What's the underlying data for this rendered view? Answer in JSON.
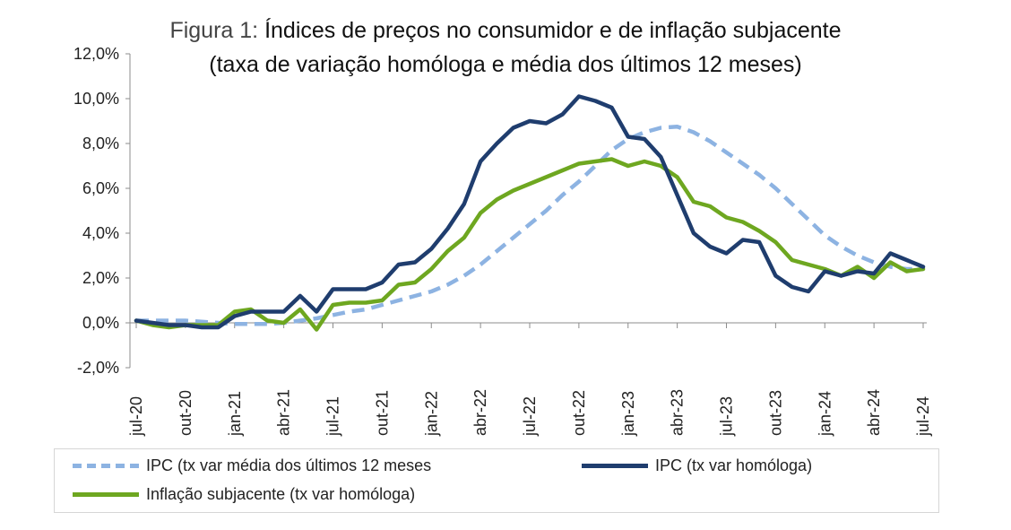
{
  "chart_data": {
    "type": "line",
    "title_prefix": "Figura 1:",
    "title": "Índices de preços no consumidor e de inflação subjacente",
    "subtitle": "(taxa de variação homóloga e média dos últimos 12 meses)",
    "ylim": [
      -2,
      12
    ],
    "y_ticks": [
      "-2,0%",
      "0,0%",
      "2,0%",
      "4,0%",
      "6,0%",
      "8,0%",
      "10,0%",
      "12,0%"
    ],
    "y_tick_values": [
      -2,
      0,
      2,
      4,
      6,
      8,
      10,
      12
    ],
    "x": [
      "jul-20",
      "ago-20",
      "set-20",
      "out-20",
      "nov-20",
      "dez-20",
      "jan-21",
      "fev-21",
      "mar-21",
      "abr-21",
      "mai-21",
      "jun-21",
      "jul-21",
      "ago-21",
      "set-21",
      "out-21",
      "nov-21",
      "dez-21",
      "jan-22",
      "fev-22",
      "mar-22",
      "abr-22",
      "mai-22",
      "jun-22",
      "jul-22",
      "ago-22",
      "set-22",
      "out-22",
      "nov-22",
      "dez-22",
      "jan-23",
      "fev-23",
      "mar-23",
      "abr-23",
      "mai-23",
      "jun-23",
      "jul-23",
      "ago-23",
      "set-23",
      "out-23",
      "nov-23",
      "dez-23",
      "jan-24",
      "fev-24",
      "mar-24",
      "abr-24",
      "mai-24",
      "jun-24",
      "jul-24"
    ],
    "x_tick_labels": [
      "jul-20",
      "out-20",
      "jan-21",
      "abr-21",
      "jul-21",
      "out-21",
      "jan-22",
      "abr-22",
      "jul-22",
      "out-22",
      "jan-23",
      "abr-23",
      "jul-23",
      "out-23",
      "jan-24",
      "abr-24",
      "jul-24"
    ],
    "x_tick_index": [
      0,
      3,
      6,
      9,
      12,
      15,
      18,
      21,
      24,
      27,
      30,
      33,
      36,
      39,
      42,
      45,
      48
    ],
    "series": [
      {
        "name": "IPC (tx var média dos últimos 12 meses",
        "color": "#8db3e2",
        "style": "dashed",
        "values": [
          0.1,
          0.1,
          0.1,
          0.1,
          0.05,
          0.0,
          -0.05,
          -0.05,
          -0.05,
          0.0,
          0.1,
          0.2,
          0.35,
          0.5,
          0.6,
          0.8,
          1.0,
          1.2,
          1.4,
          1.7,
          2.1,
          2.6,
          3.2,
          3.8,
          4.4,
          5.0,
          5.7,
          6.3,
          7.0,
          7.7,
          8.2,
          8.5,
          8.7,
          8.75,
          8.5,
          8.1,
          7.6,
          7.1,
          6.6,
          6.0,
          5.3,
          4.6,
          3.9,
          3.4,
          3.0,
          2.7,
          2.5,
          2.4,
          2.4
        ]
      },
      {
        "name": "IPC (tx var homóloga)",
        "color": "#1f3d6e",
        "style": "solid",
        "values": [
          0.1,
          0.0,
          -0.1,
          -0.1,
          -0.2,
          -0.2,
          0.3,
          0.5,
          0.5,
          0.5,
          1.2,
          0.5,
          1.5,
          1.5,
          1.5,
          1.8,
          2.6,
          2.7,
          3.3,
          4.2,
          5.3,
          7.2,
          8.0,
          8.7,
          9.0,
          8.9,
          9.3,
          10.1,
          9.9,
          9.6,
          8.3,
          8.2,
          7.4,
          5.7,
          4.0,
          3.4,
          3.1,
          3.7,
          3.6,
          2.1,
          1.6,
          1.4,
          2.3,
          2.1,
          2.3,
          2.2,
          3.1,
          2.8,
          2.5
        ]
      },
      {
        "name": "Inflação subjacente (tx var homóloga)",
        "color": "#6ea720",
        "style": "solid",
        "values": [
          0.1,
          -0.1,
          -0.2,
          -0.1,
          -0.1,
          -0.1,
          0.5,
          0.6,
          0.1,
          0.0,
          0.6,
          -0.3,
          0.8,
          0.9,
          0.9,
          1.0,
          1.7,
          1.8,
          2.4,
          3.2,
          3.8,
          4.9,
          5.5,
          5.9,
          6.2,
          6.5,
          6.8,
          7.1,
          7.2,
          7.3,
          7.0,
          7.2,
          7.0,
          6.5,
          5.4,
          5.2,
          4.7,
          4.5,
          4.1,
          3.6,
          2.8,
          2.6,
          2.4,
          2.1,
          2.5,
          2.0,
          2.7,
          2.3,
          2.4
        ]
      }
    ]
  }
}
